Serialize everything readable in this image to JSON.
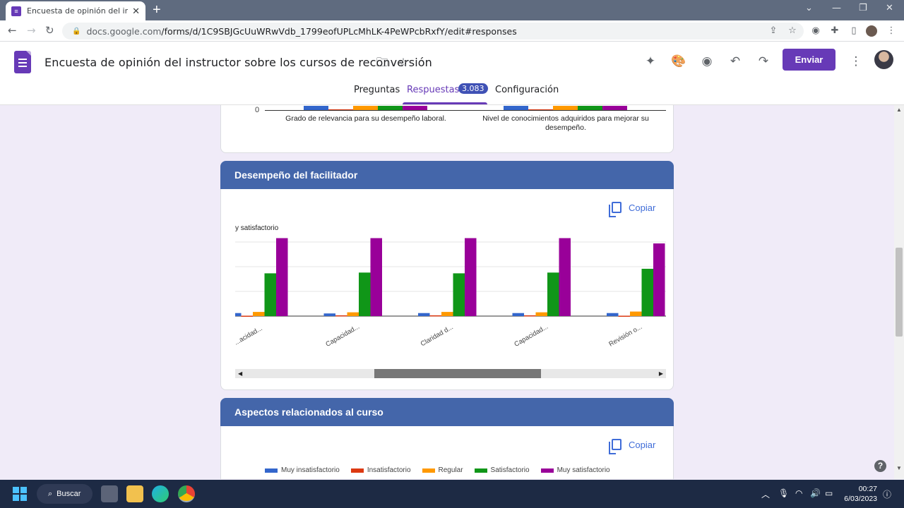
{
  "browser": {
    "tab_title": "Encuesta de opinión del instructo",
    "url_host": "docs.google.com",
    "url_path": "/forms/d/1C9SBJGcUuWRwVdb_1799eofUPLcMhLK-4PeWPcbRxfY/edit#responses"
  },
  "header": {
    "form_title": "Encuesta de opinión del instructor sobre los cursos de reconversión",
    "send_label": "Enviar",
    "tabs": [
      {
        "label": "Preguntas"
      },
      {
        "label": "Respuestas",
        "badge": "3.083"
      },
      {
        "label": "Configuración"
      }
    ]
  },
  "card1": {
    "zero_tick": "0",
    "label_left": "Grado de relevancia para su desempeño laboral.",
    "label_right": "Nivel de conocimientos adquiridos para mejorar su desempeño."
  },
  "section2": {
    "title": "Desempeño del facilitador",
    "copy_label": "Copiar",
    "legend_fragment": "y satisfactorio"
  },
  "section3": {
    "title": "Aspectos relacionados al curso",
    "copy_label": "Copiar"
  },
  "chart_data": {
    "type": "bar",
    "title": "",
    "categories": [
      "...acidad...",
      "Capacidad...",
      "Claridad d...",
      "Capacidad...",
      "Revisión o..."
    ],
    "series": [
      {
        "name": "Muy insatisfactorio",
        "color": "#3366cc",
        "values": [
          40,
          35,
          40,
          40,
          40
        ]
      },
      {
        "name": "Insatisfactorio",
        "color": "#dc3912",
        "values": [
          5,
          10,
          10,
          10,
          5
        ]
      },
      {
        "name": "Regular",
        "color": "#ff9900",
        "values": [
          55,
          50,
          55,
          50,
          60
        ]
      },
      {
        "name": "Satisfactorio",
        "color": "#109618",
        "values": [
          565,
          575,
          565,
          575,
          625
        ]
      },
      {
        "name": "Muy satisfactorio",
        "color": "#990099",
        "values": [
          1030,
          1030,
          1030,
          1030,
          960
        ]
      }
    ],
    "legend": [
      "Muy insatisfactorio",
      "Insatisfactorio",
      "Regular",
      "Satisfactorio",
      "Muy satisfactorio"
    ]
  },
  "taskbar": {
    "search_label": "Buscar",
    "time": "00:27",
    "date": "6/03/2023"
  }
}
